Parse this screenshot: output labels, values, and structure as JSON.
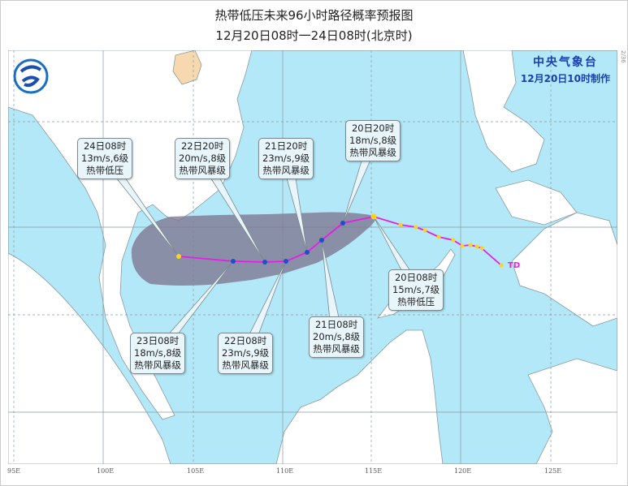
{
  "title": "热带低压未来96小时路径概率预报图",
  "subtitle": "12月20日08时一24日08时(北京时)",
  "agency": {
    "name": "中央气象台",
    "issued": "12月20日10时制作"
  },
  "side_text": "2/36",
  "current_label": "TD",
  "colors": {
    "sea": "#b3e8f8",
    "land": "#ffffff",
    "hainan": "#f6d9ae",
    "track": "#e81ce8",
    "cone": "#7e7690",
    "forecast_point": "#1f4fc8",
    "past_point": "#ffd21f"
  },
  "longitude_labels": [
    "95E",
    "100E",
    "105E",
    "110E",
    "115E",
    "120E",
    "125E"
  ],
  "forecasts": [
    {
      "time": "20日08时",
      "wind": "15m/s,7级",
      "grade": "热带低压"
    },
    {
      "time": "20日20时",
      "wind": "18m/s,8级",
      "grade": "热带风暴级"
    },
    {
      "time": "21日08时",
      "wind": "20m/s,8级",
      "grade": "热带风暴级"
    },
    {
      "time": "21日20时",
      "wind": "23m/s,9级",
      "grade": "热带风暴级"
    },
    {
      "time": "22日08时",
      "wind": "23m/s,9级",
      "grade": "热带风暴级"
    },
    {
      "time": "22日20时",
      "wind": "20m/s,8级",
      "grade": "热带风暴级"
    },
    {
      "time": "23日08时",
      "wind": "18m/s,8级",
      "grade": "热带风暴级"
    },
    {
      "time": "24日08时",
      "wind": "13m/s,6级",
      "grade": "热带低压"
    }
  ]
}
